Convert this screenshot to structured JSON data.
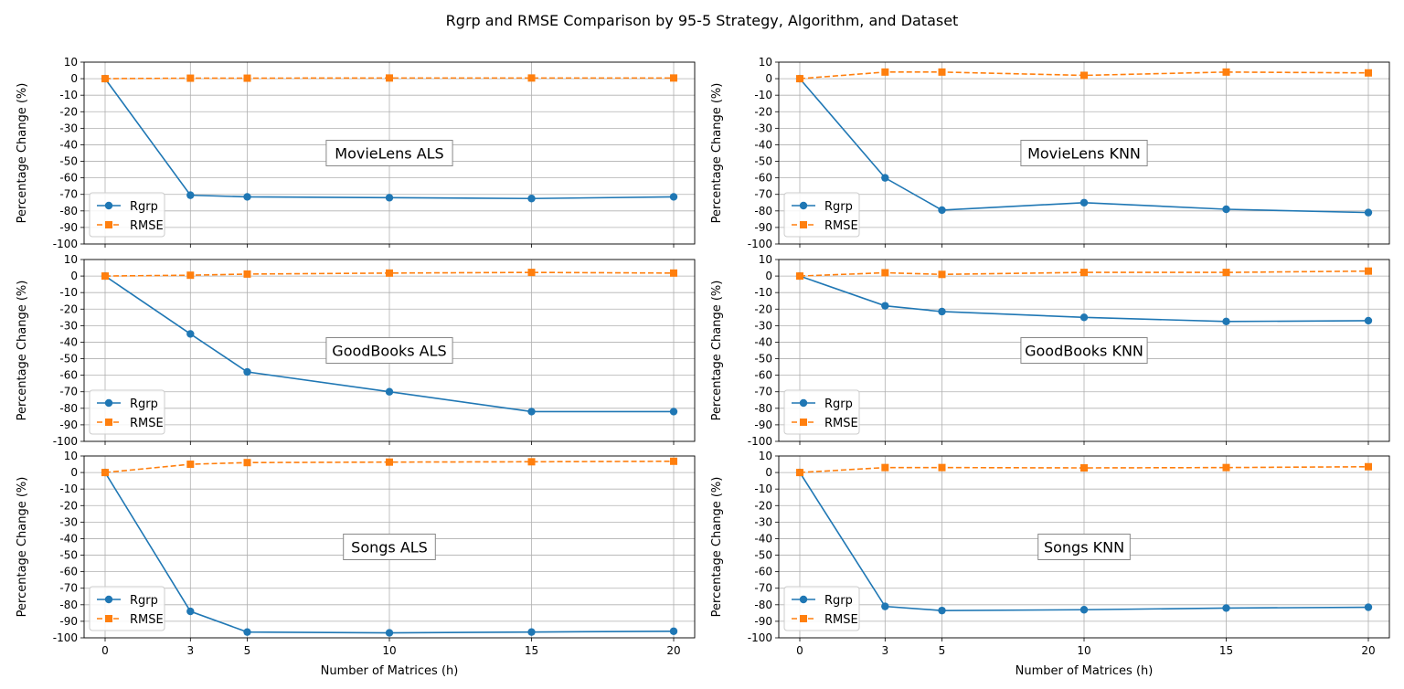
{
  "title": "Rgrp and RMSE Comparison by 95-5 Strategy, Algorithm, and Dataset",
  "colors": {
    "Rgrp": "#1f77b4",
    "RMSE": "#ff7f0e",
    "grid": "#b0b0b0"
  },
  "chart_data": [
    {
      "type": "line",
      "label": "MovieLens ALS",
      "x": [
        0,
        3,
        5,
        10,
        15,
        20
      ],
      "series": [
        {
          "name": "Rgrp",
          "values": [
            0,
            -70.5,
            -71.5,
            -72,
            -72.5,
            -71.5
          ]
        },
        {
          "name": "RMSE",
          "values": [
            0,
            0.3,
            0.3,
            0.4,
            0.4,
            0.4
          ]
        }
      ],
      "xlabel": "",
      "ylabel": "Percentage Change (%)",
      "ylim": [
        -100,
        10
      ],
      "xticks": [
        0,
        3,
        5,
        10,
        15,
        20
      ],
      "yticks": [
        10,
        0,
        -10,
        -20,
        -30,
        -40,
        -50,
        -60,
        -70,
        -80,
        -90,
        -100
      ],
      "grid": true,
      "legend": "lower-left"
    },
    {
      "type": "line",
      "label": "MovieLens KNN",
      "x": [
        0,
        3,
        5,
        10,
        15,
        20
      ],
      "series": [
        {
          "name": "Rgrp",
          "values": [
            0,
            -60,
            -79.5,
            -75,
            -79,
            -81
          ]
        },
        {
          "name": "RMSE",
          "values": [
            0,
            4,
            4,
            2,
            4,
            3.5
          ]
        }
      ],
      "xlabel": "",
      "ylabel": "Percentage Change (%)",
      "ylim": [
        -100,
        10
      ],
      "xticks": [
        0,
        3,
        5,
        10,
        15,
        20
      ],
      "yticks": [
        10,
        0,
        -10,
        -20,
        -30,
        -40,
        -50,
        -60,
        -70,
        -80,
        -90,
        -100
      ],
      "grid": true,
      "legend": "lower-left"
    },
    {
      "type": "line",
      "label": "GoodBooks ALS",
      "x": [
        0,
        3,
        5,
        10,
        15,
        20
      ],
      "series": [
        {
          "name": "Rgrp",
          "values": [
            0,
            -35,
            -58,
            -70,
            -82,
            -82
          ]
        },
        {
          "name": "RMSE",
          "values": [
            0,
            0.5,
            1.2,
            1.8,
            2.2,
            1.8
          ]
        }
      ],
      "xlabel": "",
      "ylabel": "Percentage Change (%)",
      "ylim": [
        -100,
        10
      ],
      "xticks": [
        0,
        3,
        5,
        10,
        15,
        20
      ],
      "yticks": [
        10,
        0,
        -10,
        -20,
        -30,
        -40,
        -50,
        -60,
        -70,
        -80,
        -90,
        -100
      ],
      "grid": true,
      "legend": "lower-left"
    },
    {
      "type": "line",
      "label": "GoodBooks KNN",
      "x": [
        0,
        3,
        5,
        10,
        15,
        20
      ],
      "series": [
        {
          "name": "Rgrp",
          "values": [
            0,
            -18,
            -21.5,
            -25,
            -27.5,
            -27
          ]
        },
        {
          "name": "RMSE",
          "values": [
            0,
            2,
            1,
            2.2,
            2.2,
            3
          ]
        }
      ],
      "xlabel": "",
      "ylabel": "Percentage Change (%)",
      "ylim": [
        -100,
        10
      ],
      "xticks": [
        0,
        3,
        5,
        10,
        15,
        20
      ],
      "yticks": [
        10,
        0,
        -10,
        -20,
        -30,
        -40,
        -50,
        -60,
        -70,
        -80,
        -90,
        -100
      ],
      "grid": true,
      "legend": "lower-left"
    },
    {
      "type": "line",
      "label": "Songs ALS",
      "x": [
        0,
        3,
        5,
        10,
        15,
        20
      ],
      "series": [
        {
          "name": "Rgrp",
          "values": [
            0,
            -84,
            -96.5,
            -97,
            -96.5,
            -96
          ]
        },
        {
          "name": "RMSE",
          "values": [
            0,
            5,
            6,
            6.3,
            6.5,
            6.8
          ]
        }
      ],
      "xlabel": "Number of Matrices (h)",
      "ylabel": "Percentage Change (%)",
      "ylim": [
        -100,
        10
      ],
      "xticks": [
        0,
        3,
        5,
        10,
        15,
        20
      ],
      "yticks": [
        10,
        0,
        -10,
        -20,
        -30,
        -40,
        -50,
        -60,
        -70,
        -80,
        -90,
        -100
      ],
      "grid": true,
      "legend": "lower-left"
    },
    {
      "type": "line",
      "label": "Songs KNN",
      "x": [
        0,
        3,
        5,
        10,
        15,
        20
      ],
      "series": [
        {
          "name": "Rgrp",
          "values": [
            0,
            -81,
            -83.5,
            -83,
            -82,
            -81.5
          ]
        },
        {
          "name": "RMSE",
          "values": [
            0,
            3,
            3,
            2.8,
            3,
            3.5
          ]
        }
      ],
      "xlabel": "Number of Matrices (h)",
      "ylabel": "Percentage Change (%)",
      "ylim": [
        -100,
        10
      ],
      "xticks": [
        0,
        3,
        5,
        10,
        15,
        20
      ],
      "yticks": [
        10,
        0,
        -10,
        -20,
        -30,
        -40,
        -50,
        -60,
        -70,
        -80,
        -90,
        -100
      ],
      "grid": true,
      "legend": "lower-left"
    }
  ]
}
